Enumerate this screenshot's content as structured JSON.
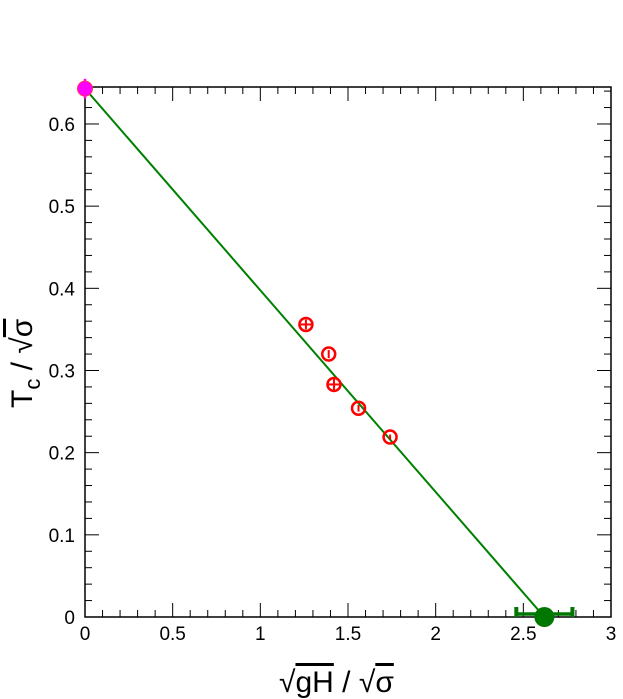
{
  "chart_data": {
    "type": "scatter",
    "x_ticks": [
      "0",
      "0.5",
      "1",
      "1.5",
      "2",
      "2.5",
      "3"
    ],
    "y_ticks": [
      "0",
      "0.1",
      "0.2",
      "0.3",
      "0.4",
      "0.5",
      "0.6"
    ],
    "xlim": [
      0,
      3
    ],
    "ylim": [
      0,
      0.645
    ],
    "grid": false,
    "xlabel": {
      "sqrt_symbol": "√",
      "radicand": "gH",
      "separator": " / ",
      "denominator": "σ"
    },
    "ylabel": {
      "main": "T",
      "subscript": "c",
      "separator": " / ",
      "sqrt_symbol": "√",
      "denominator": "σ"
    },
    "series": [
      {
        "marker": "open-circle",
        "color": "#ff0000",
        "points": [
          {
            "x": 1.26,
            "y": 0.356,
            "xerr": 0.03,
            "yerr": 0.006
          },
          {
            "x": 1.39,
            "y": 0.32,
            "xerr": 0.0,
            "yerr": 0.005
          },
          {
            "x": 1.42,
            "y": 0.283,
            "xerr": 0.03,
            "yerr": 0.007
          },
          {
            "x": 1.56,
            "y": 0.254,
            "xerr": 0.0,
            "yerr": 0.004
          },
          {
            "x": 1.74,
            "y": 0.219,
            "xerr": 0.0,
            "yerr": 0.003
          }
        ]
      },
      {
        "marker": "filled-circle",
        "color": "#ff00ff",
        "points": [
          {
            "x": 0.0,
            "y": 0.643,
            "xerr": 0.0,
            "yerr": 0.012
          }
        ]
      },
      {
        "marker": "filled-circle-large",
        "color": "#007700",
        "points": [
          {
            "x": 2.62,
            "y": 0.0,
            "xerr": 0.16,
            "yerr": 0.0
          }
        ]
      }
    ],
    "fit_line": {
      "color": "#008000",
      "x": [
        0.0,
        2.62
      ],
      "y": [
        0.643,
        0.0
      ]
    }
  }
}
